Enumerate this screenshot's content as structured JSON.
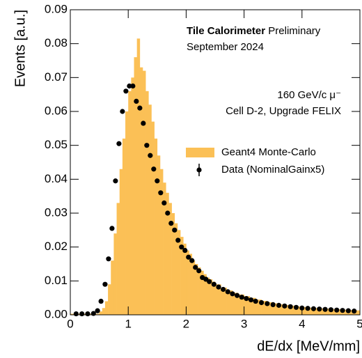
{
  "chart_data": {
    "type": "histogram",
    "xlabel": "dE/dx [MeV/mm]",
    "ylabel": "Events [a.u.]",
    "annotations": {
      "experiment": "Tile Calorimeter",
      "status": "Preliminary",
      "date": "September 2024",
      "beam": "160 GeV/c μ⁻",
      "setup": "Cell D-2, Upgrade FELIX"
    },
    "xlim": [
      0,
      5
    ],
    "ylim": [
      0,
      0.09
    ],
    "xticks": [
      0,
      1,
      2,
      3,
      4,
      5
    ],
    "yticks": [
      {
        "value": 0,
        "label": "0.00"
      },
      {
        "value": 0.01,
        "label": "0.01"
      },
      {
        "value": 0.02,
        "label": "0.02"
      },
      {
        "value": 0.03,
        "label": "0.03"
      },
      {
        "value": 0.04,
        "label": "0.04"
      },
      {
        "value": 0.05,
        "label": "0.05"
      },
      {
        "value": 0.06,
        "label": "0.06"
      },
      {
        "value": 0.07,
        "label": "0.07"
      },
      {
        "value": 0.08,
        "label": "0.08"
      },
      {
        "value": 0.09,
        "label": "0.09"
      }
    ],
    "series": [
      {
        "name": "Geant4 Monte-Carlo",
        "type": "histogram",
        "color": "#fbc056",
        "bins": [
          0,
          0.5,
          0.55,
          0.6,
          0.65,
          0.7,
          0.75,
          0.8,
          0.85,
          0.9,
          0.95,
          1.0,
          1.05,
          1.1,
          1.15,
          1.2,
          1.25,
          1.3,
          1.35,
          1.4,
          1.45,
          1.5,
          1.55,
          1.6,
          1.65,
          1.7,
          1.75,
          1.8,
          1.85,
          1.9,
          1.95,
          2.0,
          2.05,
          2.1,
          2.15,
          2.2,
          2.25,
          2.3,
          2.35,
          2.4,
          2.45,
          2.5,
          2.6,
          2.7,
          2.8,
          2.9,
          3.0,
          3.1,
          3.2,
          3.3,
          3.4,
          3.5,
          3.6,
          3.7,
          3.8,
          3.9,
          4.0,
          4.1,
          4.2,
          4.3,
          4.4,
          4.5,
          4.6,
          4.7,
          4.8,
          4.9,
          5.0
        ],
        "values": [
          0.0003,
          0.001,
          0.002,
          0.004,
          0.009,
          0.016,
          0.024,
          0.033,
          0.043,
          0.052,
          0.06,
          0.066,
          0.07,
          0.076,
          0.0815,
          0.073,
          0.072,
          0.066,
          0.062,
          0.057,
          0.052,
          0.047,
          0.043,
          0.039,
          0.036,
          0.033,
          0.03,
          0.027,
          0.025,
          0.023,
          0.021,
          0.019,
          0.018,
          0.016,
          0.015,
          0.014,
          0.013,
          0.012,
          0.011,
          0.0105,
          0.0098,
          0.009,
          0.008,
          0.0072,
          0.0065,
          0.006,
          0.0055,
          0.005,
          0.0045,
          0.0041,
          0.0037,
          0.0034,
          0.0031,
          0.0029,
          0.0027,
          0.0025,
          0.0023,
          0.0021,
          0.002,
          0.0019,
          0.0018,
          0.0017,
          0.0016,
          0.0015,
          0.0014,
          0.0013
        ]
      },
      {
        "name": "Data (NominalGainx5)",
        "type": "scatter",
        "color": "#000000",
        "x": [
          0.1,
          0.2,
          0.3,
          0.4,
          0.47,
          0.53,
          0.6,
          0.66,
          0.72,
          0.78,
          0.84,
          0.9,
          0.96,
          1.02,
          1.08,
          1.14,
          1.2,
          1.26,
          1.32,
          1.38,
          1.44,
          1.5,
          1.56,
          1.62,
          1.68,
          1.74,
          1.8,
          1.86,
          1.92,
          1.98,
          2.04,
          2.1,
          2.16,
          2.22,
          2.28,
          2.34,
          2.4,
          2.48,
          2.56,
          2.64,
          2.72,
          2.8,
          2.88,
          2.96,
          3.04,
          3.12,
          3.2,
          3.3,
          3.4,
          3.5,
          3.6,
          3.7,
          3.8,
          3.9,
          4.0,
          4.1,
          4.2,
          4.3,
          4.4,
          4.5,
          4.6,
          4.7,
          4.8,
          4.9
        ],
        "values": [
          0.0003,
          0.0003,
          0.0003,
          0.0004,
          0.0012,
          0.004,
          0.009,
          0.0165,
          0.0255,
          0.0395,
          0.0505,
          0.06,
          0.066,
          0.0675,
          0.0675,
          0.063,
          0.061,
          0.0565,
          0.05,
          0.047,
          0.043,
          0.0395,
          0.036,
          0.033,
          0.03,
          0.027,
          0.025,
          0.022,
          0.02,
          0.019,
          0.017,
          0.016,
          0.014,
          0.013,
          0.011,
          0.0105,
          0.0098,
          0.009,
          0.0082,
          0.0075,
          0.0068,
          0.0062,
          0.0057,
          0.0052,
          0.0048,
          0.0044,
          0.004,
          0.0036,
          0.0033,
          0.003,
          0.0028,
          0.0026,
          0.0024,
          0.0022,
          0.002,
          0.0019,
          0.0018,
          0.0017,
          0.0016,
          0.0015,
          0.0014,
          0.0013,
          0.0012,
          0.0011
        ]
      }
    ]
  }
}
